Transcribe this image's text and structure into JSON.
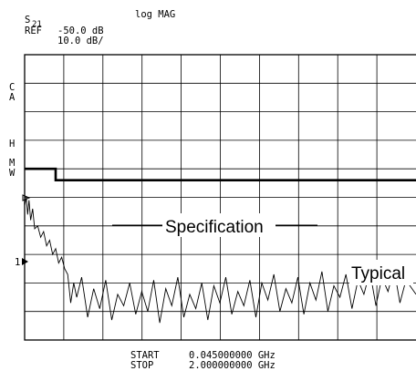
{
  "header": {
    "parameter": "S",
    "parameter_sub": "21",
    "format": "log MAG",
    "ref_label": "REF",
    "ref_value": "-50.0 dB",
    "scale_value": "10.0 dB/"
  },
  "side_labels": {
    "c": "C",
    "a": "A",
    "h": "H",
    "m": "M",
    "w": "W",
    "marker": "1"
  },
  "footer": {
    "start_label": "START",
    "start_value": "0.045000000 GHz",
    "stop_label": "STOP",
    "stop_value": "2.000000000 GHz"
  },
  "colors": {
    "ink": "#000000",
    "background": "#ffffff"
  },
  "chart_data": {
    "type": "line",
    "title": "",
    "xlabel": "",
    "ylabel": "",
    "xlim": [
      0.045,
      2.0
    ],
    "ylim": [
      -100,
      0
    ],
    "x_unit": "GHz",
    "y_unit": "dB",
    "grid": true,
    "grid_divisions": {
      "x": 10,
      "y": 10
    },
    "reference_level_db": -50.0,
    "scale_db_per_div": 10.0,
    "series": [
      {
        "name": "Specification",
        "type": "step",
        "x": [
          0.045,
          0.2,
          0.2,
          2.0
        ],
        "y": [
          -40,
          -40,
          -44,
          -44
        ]
      },
      {
        "name": "Typical",
        "x": [
          0.045,
          0.053,
          0.06,
          0.067,
          0.075,
          0.085,
          0.095,
          0.11,
          0.125,
          0.14,
          0.155,
          0.17,
          0.185,
          0.2,
          0.215,
          0.23,
          0.245,
          0.26,
          0.275,
          0.29,
          0.305,
          0.33,
          0.36,
          0.39,
          0.42,
          0.45,
          0.48,
          0.51,
          0.54,
          0.57,
          0.6,
          0.63,
          0.66,
          0.69,
          0.72,
          0.75,
          0.78,
          0.81,
          0.84,
          0.87,
          0.9,
          0.93,
          0.96,
          0.99,
          1.02,
          1.05,
          1.08,
          1.11,
          1.14,
          1.17,
          1.2,
          1.23,
          1.26,
          1.29,
          1.32,
          1.35,
          1.38,
          1.41,
          1.44,
          1.47,
          1.5,
          1.53,
          1.56,
          1.59,
          1.62,
          1.65,
          1.68,
          1.71,
          1.74,
          1.77,
          1.8,
          1.83,
          1.86,
          1.89,
          1.92,
          1.95,
          2.0
        ],
        "y": [
          -53,
          -50,
          -56,
          -51,
          -58,
          -54,
          -61,
          -60,
          -64,
          -62,
          -67,
          -65,
          -70,
          -68,
          -73,
          -71,
          -75,
          -77,
          -87,
          -80,
          -85,
          -78,
          -92,
          -82,
          -89,
          -79,
          -93,
          -84,
          -88,
          -80,
          -91,
          -83,
          -90,
          -79,
          -94,
          -82,
          -88,
          -78,
          -92,
          -84,
          -89,
          -80,
          -93,
          -81,
          -87,
          -78,
          -91,
          -83,
          -88,
          -79,
          -92,
          -80,
          -86,
          -77,
          -90,
          -82,
          -87,
          -78,
          -91,
          -80,
          -86,
          -76,
          -90,
          -81,
          -85,
          -77,
          -89,
          -79,
          -84,
          -76,
          -88,
          -78,
          -83,
          -75,
          -87,
          -79,
          -84
        ]
      }
    ],
    "annotations": [
      {
        "text": "Specification",
        "x": 0.95,
        "y": -40
      },
      {
        "text": "Typical",
        "x": 1.78,
        "y": -64
      }
    ]
  }
}
